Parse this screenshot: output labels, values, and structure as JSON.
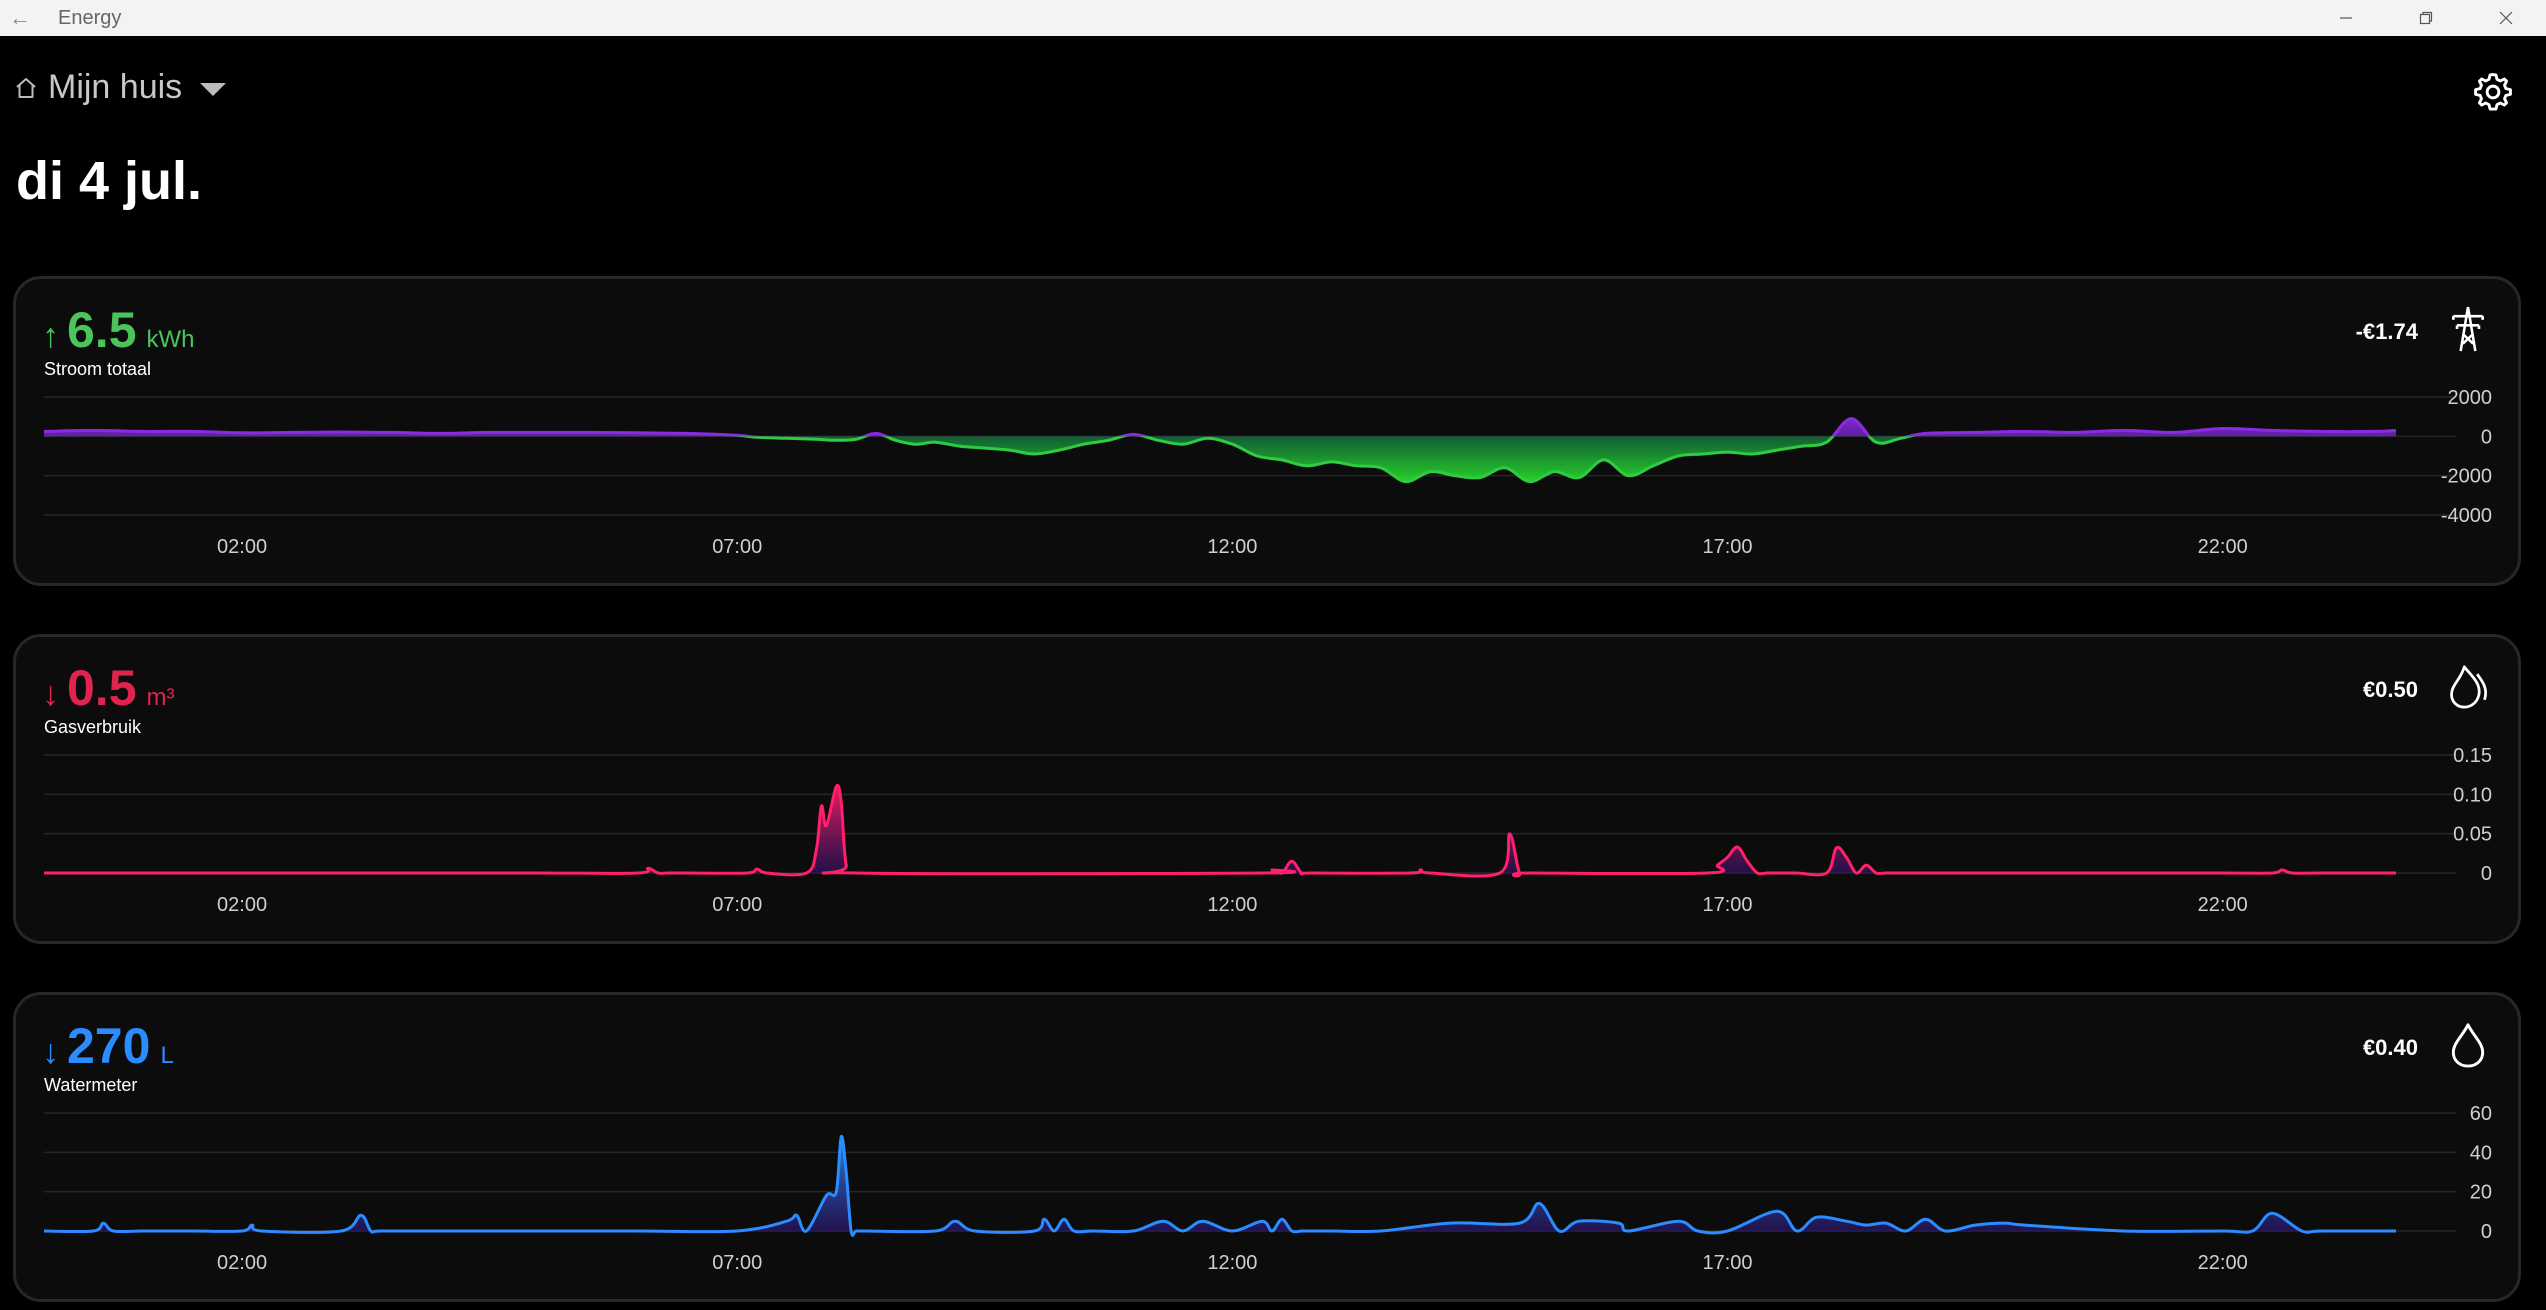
{
  "window": {
    "title": "Energy"
  },
  "header": {
    "home_name": "Mijn huis",
    "date": "di 4 jul."
  },
  "colors": {
    "electricity_return": "#2ecc40",
    "electricity_use": "#8a2be2",
    "gas": "#ff1f6b",
    "water": "#2a8cff"
  },
  "cards": [
    {
      "label": "Stroom totaal",
      "value": "6.5",
      "unit": "kWh",
      "arrow": "↑",
      "cost": "-€1.74",
      "icon": "power-pylon-icon",
      "color": "#4cc35b",
      "chart_data": {
        "type": "area",
        "xlabels": [
          "02:00",
          "07:00",
          "12:00",
          "17:00",
          "22:00"
        ],
        "ylabels": [
          "2000",
          "0",
          "-2000",
          "-4000"
        ],
        "ylim": [
          -4000,
          2000
        ],
        "x": [
          0,
          0.5,
          1,
          1.5,
          2,
          2.5,
          3,
          3.5,
          4,
          4.5,
          5,
          5.5,
          6,
          6.5,
          7,
          7.2,
          7.5,
          7.8,
          8,
          8.2,
          8.4,
          8.6,
          8.8,
          9,
          9.25,
          9.5,
          9.75,
          10,
          10.25,
          10.5,
          10.75,
          11,
          11.25,
          11.5,
          11.75,
          12,
          12.25,
          12.5,
          12.75,
          13,
          13.25,
          13.5,
          13.75,
          14,
          14.25,
          14.5,
          14.75,
          15,
          15.25,
          15.5,
          15.75,
          16,
          16.25,
          16.5,
          16.75,
          17,
          17.25,
          17.5,
          17.75,
          18,
          18.25,
          18.5,
          18.75,
          19,
          19.5,
          20,
          20.5,
          21,
          21.5,
          22,
          22.5,
          23,
          23.5,
          23.75
        ],
        "y": [
          250,
          300,
          250,
          250,
          180,
          200,
          220,
          200,
          150,
          200,
          200,
          200,
          180,
          150,
          50,
          -50,
          -100,
          -150,
          -200,
          -150,
          150,
          -200,
          -400,
          -300,
          -500,
          -600,
          -700,
          -900,
          -700,
          -400,
          -200,
          100,
          -200,
          -400,
          -100,
          -400,
          -1000,
          -1200,
          -1500,
          -1300,
          -1500,
          -1600,
          -2300,
          -1800,
          -2000,
          -2100,
          -1600,
          -2300,
          -1800,
          -2100,
          -1200,
          -2000,
          -1500,
          -1000,
          -900,
          -800,
          -900,
          -700,
          -500,
          -300,
          900,
          -300,
          -100,
          150,
          200,
          250,
          200,
          300,
          200,
          400,
          300,
          250,
          250,
          300
        ]
      }
    },
    {
      "label": "Gasverbruik",
      "value": "0.5",
      "unit": "m³",
      "arrow": "↓",
      "cost": "€0.50",
      "icon": "flame-icon",
      "color": "#e0244e",
      "chart_data": {
        "type": "area",
        "xlabels": [
          "02:00",
          "07:00",
          "12:00",
          "17:00",
          "22:00"
        ],
        "ylabels": [
          "0.15",
          "0.10",
          "0.05",
          "0"
        ],
        "ylim": [
          0,
          0.15
        ],
        "x": [
          0,
          1,
          2,
          3,
          4,
          5,
          6,
          6.1,
          6.2,
          6.3,
          6.5,
          7.1,
          7.2,
          7.3,
          7.7,
          7.8,
          7.85,
          7.9,
          8,
          8.05,
          8.1,
          8.2,
          12.3,
          12.4,
          12.5,
          12.6,
          12.7,
          12.8,
          13.8,
          13.9,
          14,
          14.7,
          14.8,
          14.9,
          15,
          16.8,
          16.9,
          17,
          17.1,
          17.2,
          17.3,
          17.4,
          17.5,
          17.6,
          17.7,
          18,
          18.1,
          18.2,
          18.3,
          18.4,
          18.5,
          18.6,
          18.7,
          18.8,
          19,
          20,
          21,
          22,
          22.5,
          22.6,
          22.7,
          23,
          23.75
        ],
        "y": [
          0,
          0,
          0,
          0,
          0,
          0,
          0,
          0.006,
          0,
          0,
          0,
          0,
          0.005,
          0,
          0,
          0.03,
          0.085,
          0.06,
          0.11,
          0.09,
          0.01,
          0,
          0,
          0.004,
          0,
          0.015,
          0,
          0,
          0,
          0.004,
          0,
          0,
          0.05,
          0,
          0,
          0,
          0.01,
          0.02,
          0.033,
          0.015,
          0,
          0,
          0,
          0,
          0,
          0,
          0.032,
          0.02,
          0,
          0.01,
          0,
          0,
          0,
          0,
          0,
          0,
          0,
          0,
          0,
          0.004,
          0,
          0,
          0
        ]
      }
    },
    {
      "label": "Watermeter",
      "value": "270",
      "unit": "L",
      "arrow": "↓",
      "cost": "€0.40",
      "icon": "water-drop-icon",
      "color": "#2a8cff",
      "chart_data": {
        "type": "area",
        "xlabels": [
          "02:00",
          "07:00",
          "12:00",
          "17:00",
          "22:00"
        ],
        "ylabels": [
          "60",
          "40",
          "20",
          "0"
        ],
        "ylim": [
          0,
          60
        ],
        "x": [
          0,
          0.5,
          0.6,
          0.7,
          1,
          1.5,
          2,
          2.1,
          2.2,
          3,
          3.2,
          3.3,
          3.4,
          4,
          5,
          6,
          7,
          7.5,
          7.6,
          7.7,
          7.9,
          8,
          8.05,
          8.1,
          8.15,
          8.2,
          8.3,
          9,
          9.2,
          9.4,
          10,
          10.1,
          10.2,
          10.3,
          10.4,
          10.6,
          11,
          11.3,
          11.5,
          11.7,
          12,
          12.3,
          12.4,
          12.5,
          12.6,
          12.7,
          12.8,
          13,
          13.5,
          14.2,
          14.9,
          15.1,
          15.3,
          15.5,
          15.9,
          16,
          16.5,
          16.7,
          17,
          17.5,
          17.7,
          17.9,
          18.2,
          18.4,
          18.6,
          18.8,
          19,
          19.2,
          19.5,
          19.8,
          20,
          21,
          22,
          22.3,
          22.5,
          22.8,
          23,
          23.75
        ],
        "y": [
          0,
          0,
          4,
          0,
          0,
          0,
          0,
          3,
          0,
          0,
          8,
          0,
          0,
          0,
          0,
          0,
          0,
          5,
          8,
          0,
          18,
          20,
          48,
          30,
          0,
          0,
          0,
          0,
          5,
          0,
          0,
          6,
          0,
          6,
          0,
          0,
          0,
          5,
          0,
          5,
          0,
          5,
          0,
          6,
          0,
          0,
          0,
          0,
          0,
          4,
          4,
          14,
          0,
          5,
          4,
          0,
          5,
          0,
          0,
          10,
          0,
          7,
          5,
          3,
          4,
          0,
          6,
          0,
          3,
          4,
          3,
          0,
          0,
          0,
          9,
          0,
          0,
          0
        ]
      }
    }
  ]
}
